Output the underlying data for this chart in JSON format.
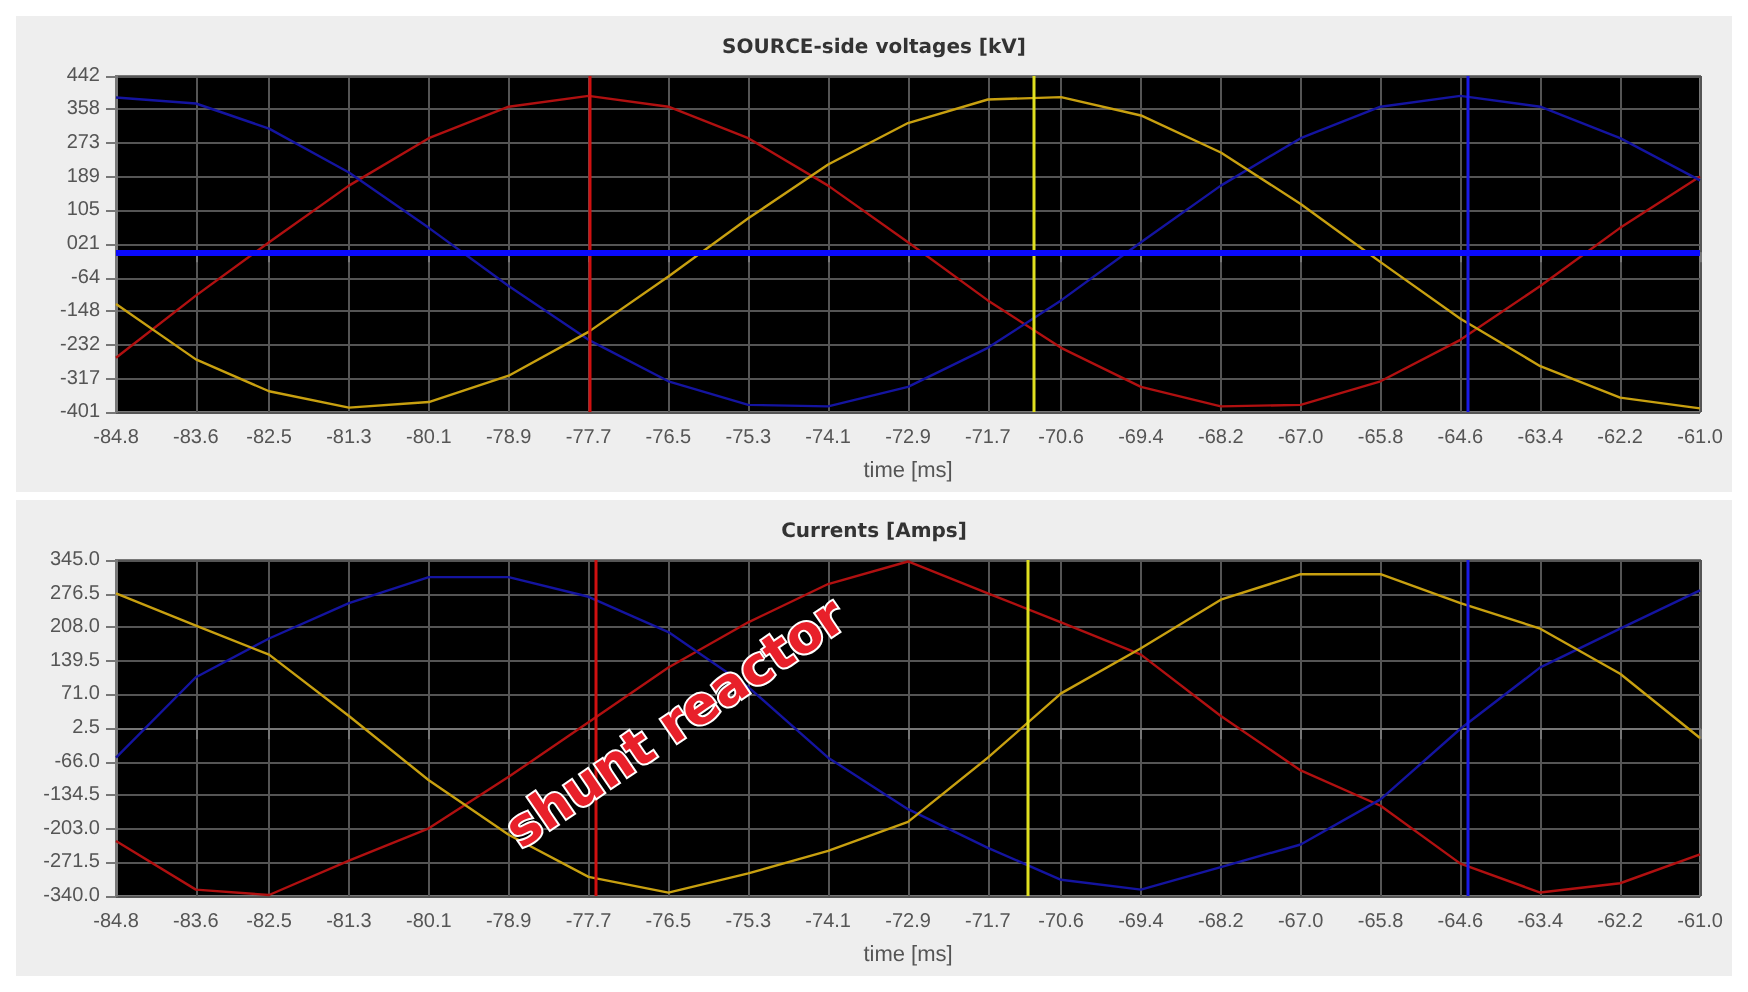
{
  "chart_data": [
    {
      "type": "line",
      "title": "SOURCE-side voltages [kV]",
      "xlabel": "time [ms]",
      "x": [
        -84.8,
        -83.6,
        -82.5,
        -81.3,
        -80.1,
        -78.9,
        -77.7,
        -76.5,
        -75.3,
        -74.1,
        -72.9,
        -71.7,
        -70.6,
        -69.4,
        -68.2,
        -67.0,
        -65.8,
        -64.6,
        -63.4,
        -62.2,
        -61.0
      ],
      "series": [
        {
          "color": "#b01010",
          "values": [
            -265,
            -109,
            25,
            167,
            286,
            365,
            392,
            365,
            286,
            167,
            25,
            -121,
            -240,
            -338,
            -387,
            -383,
            -324,
            -220,
            -85,
            61,
            190
          ]
        },
        {
          "color": "#1414a0",
          "values": [
            388,
            373,
            310,
            200,
            61,
            -85,
            -220,
            -324,
            -383,
            -387,
            -338,
            -240,
            -121,
            25,
            167,
            286,
            365,
            392,
            365,
            286,
            180
          ]
        },
        {
          "color": "#c8a010",
          "values": [
            -130,
            -269,
            -349,
            -390,
            -376,
            -310,
            -200,
            -61,
            85,
            220,
            324,
            383,
            389,
            343,
            250,
            121,
            -25,
            -167,
            -286,
            -365,
            -392
          ]
        }
      ],
      "xlim": [
        -84.8,
        -61.0
      ],
      "xticks": [
        {
          "value": -84.8,
          "label": "-84.8"
        },
        {
          "value": -83.6,
          "label": "-83.6"
        },
        {
          "value": -82.5,
          "label": "-82.5"
        },
        {
          "value": -81.3,
          "label": "-81.3"
        },
        {
          "value": -80.1,
          "label": "-80.1"
        },
        {
          "value": -78.9,
          "label": "-78.9"
        },
        {
          "value": -77.7,
          "label": "-77.7"
        },
        {
          "value": -76.5,
          "label": "-76.5"
        },
        {
          "value": -75.3,
          "label": "-75.3"
        },
        {
          "value": -74.1,
          "label": "-74.1"
        },
        {
          "value": -72.9,
          "label": "-72.9"
        },
        {
          "value": -71.7,
          "label": "-71.7"
        },
        {
          "value": -70.6,
          "label": "-70.6"
        },
        {
          "value": -69.4,
          "label": "-69.4"
        },
        {
          "value": -68.2,
          "label": "-68.2"
        },
        {
          "value": -67.0,
          "label": "-67.0"
        },
        {
          "value": -65.8,
          "label": "-65.8"
        },
        {
          "value": -64.6,
          "label": "-64.6"
        },
        {
          "value": -63.4,
          "label": "-63.4"
        },
        {
          "value": -62.2,
          "label": "-62.2"
        },
        {
          "value": -61.0,
          "label": "-61.0"
        }
      ],
      "ylim": [
        -401,
        442
      ],
      "yticks": [
        -401,
        -317,
        -232,
        -148,
        -64,
        {
          "value": 21,
          "label": "021"
        },
        105,
        189,
        273,
        358,
        442
      ],
      "grid": true,
      "ref_lines": [
        {
          "axis": "x",
          "value": -77.7,
          "color": "#d01010"
        },
        {
          "axis": "x",
          "value": -71.0,
          "color": "#e0e020"
        },
        {
          "axis": "x",
          "value": -64.5,
          "color": "#1a1ae8"
        },
        {
          "axis": "y",
          "value": 0,
          "color": "#0a0aff"
        }
      ]
    },
    {
      "type": "line",
      "title": "Currents [Amps]",
      "xlabel": "time [ms]",
      "x": [
        -84.8,
        -83.6,
        -82.5,
        -81.3,
        -80.1,
        -78.9,
        -77.7,
        -76.5,
        -75.3,
        -74.1,
        -72.9,
        -71.7,
        -70.6,
        -69.4,
        -68.2,
        -67.0,
        -65.8,
        -64.6,
        -63.4,
        -62.2,
        -61.0
      ],
      "series": [
        {
          "color": "#b01010",
          "values": [
            -228,
            -327,
            -338,
            -268,
            -202,
            -97,
            14,
            126,
            218,
            296,
            342,
            277,
            218,
            152,
            27,
            -84,
            -156,
            -274,
            -333,
            -314,
            -255
          ]
        },
        {
          "color": "#1414a0",
          "values": [
            -58,
            106,
            185,
            257,
            310,
            310,
            270,
            198,
            86,
            -58,
            -163,
            -242,
            -307,
            -327,
            -281,
            -235,
            -143,
            1,
            126,
            205,
            283
          ]
        },
        {
          "color": "#c8a010",
          "values": [
            277,
            211,
            152,
            27,
            -104,
            -215,
            -301,
            -333,
            -294,
            -248,
            -189,
            -58,
            73,
            165,
            264,
            316,
            316,
            257,
            205,
            113,
            -18
          ]
        }
      ],
      "xlim": [
        -84.8,
        -61.0
      ],
      "xticks": [
        {
          "value": -84.8,
          "label": "-84.8"
        },
        {
          "value": -83.6,
          "label": "-83.6"
        },
        {
          "value": -82.5,
          "label": "-82.5"
        },
        {
          "value": -81.3,
          "label": "-81.3"
        },
        {
          "value": -80.1,
          "label": "-80.1"
        },
        {
          "value": -78.9,
          "label": "-78.9"
        },
        {
          "value": -77.7,
          "label": "-77.7"
        },
        {
          "value": -76.5,
          "label": "-76.5"
        },
        {
          "value": -75.3,
          "label": "-75.3"
        },
        {
          "value": -74.1,
          "label": "-74.1"
        },
        {
          "value": -72.9,
          "label": "-72.9"
        },
        {
          "value": -71.7,
          "label": "-71.7"
        },
        {
          "value": -70.6,
          "label": "-70.6"
        },
        {
          "value": -69.4,
          "label": "-69.4"
        },
        {
          "value": -68.2,
          "label": "-68.2"
        },
        {
          "value": -67.0,
          "label": "-67.0"
        },
        {
          "value": -65.8,
          "label": "-65.8"
        },
        {
          "value": -64.6,
          "label": "-64.6"
        },
        {
          "value": -63.4,
          "label": "-63.4"
        },
        {
          "value": -62.2,
          "label": "-62.2"
        },
        {
          "value": -61.0,
          "label": "-61.0"
        }
      ],
      "ylim": [
        -340,
        345
      ],
      "yticks": [
        {
          "value": -340,
          "label": "-340.0"
        },
        -271.5,
        {
          "value": -203,
          "label": "-203.0"
        },
        -134.5,
        {
          "value": -66,
          "label": "-66.0"
        },
        2.5,
        {
          "value": 71,
          "label": "71.0"
        },
        139.5,
        {
          "value": 208,
          "label": "208.0"
        },
        276.5,
        {
          "value": 345,
          "label": "345.0"
        }
      ],
      "grid": true,
      "ref_lines": [
        {
          "axis": "x",
          "value": -77.6,
          "color": "#d01010"
        },
        {
          "axis": "x",
          "value": -71.1,
          "color": "#e0e020"
        },
        {
          "axis": "x",
          "value": -64.5,
          "color": "#1a1ae8"
        }
      ],
      "annotations": [
        "shunt reactor"
      ]
    }
  ]
}
